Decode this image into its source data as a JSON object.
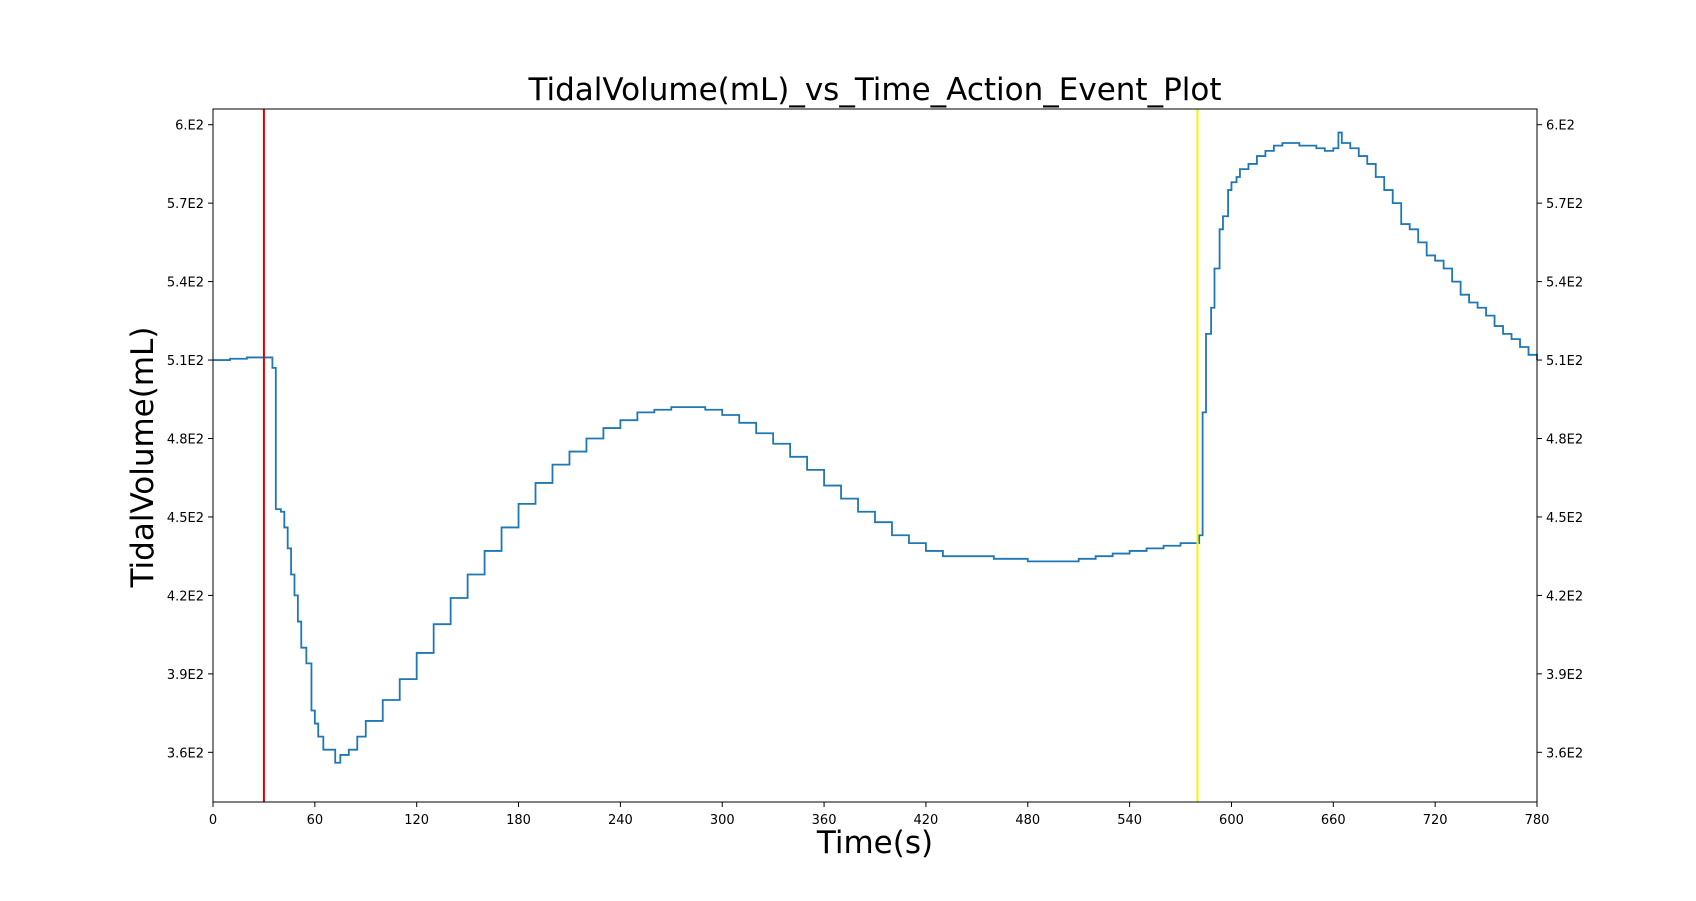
{
  "chart_data": {
    "type": "line",
    "title": "TidalVolume(mL)_vs_Time_Action_Event_Plot",
    "xlabel": "Time(s)",
    "ylabel": "TidalVolume(mL)",
    "xlim": [
      0,
      780
    ],
    "ylim": [
      341,
      606
    ],
    "x_ticks": [
      0,
      60,
      120,
      180,
      240,
      300,
      360,
      420,
      480,
      540,
      600,
      660,
      720,
      780
    ],
    "x_tick_labels": [
      "0",
      "60",
      "120",
      "180",
      "240",
      "300",
      "360",
      "420",
      "480",
      "540",
      "600",
      "660",
      "720",
      "780"
    ],
    "y_ticks": [
      360,
      390,
      420,
      450,
      480,
      510,
      540,
      570,
      600
    ],
    "y_tick_labels": [
      "3.6E2",
      "3.9E2",
      "4.2E2",
      "4.5E2",
      "4.8E2",
      "5.1E2",
      "5.4E2",
      "5.7E2",
      "6.E2"
    ],
    "y_ticks_mirrored_right": true,
    "grid": false,
    "series_color": "#1f77b4",
    "event_lines": [
      {
        "x": 30,
        "color": "#e00000"
      },
      {
        "x": 580,
        "color": "#f5f500"
      }
    ],
    "series": [
      {
        "x": [
          0,
          10,
          20,
          30,
          32,
          35,
          37,
          40,
          42,
          44,
          46,
          48,
          50,
          52,
          55,
          58,
          60,
          62,
          65,
          70,
          72,
          75,
          80,
          85,
          90,
          100,
          110,
          120,
          130,
          140,
          150,
          160,
          170,
          180,
          190,
          200,
          210,
          220,
          230,
          240,
          250,
          260,
          270,
          280,
          290,
          300,
          310,
          320,
          330,
          340,
          350,
          360,
          370,
          380,
          390,
          400,
          410,
          420,
          430,
          440,
          450,
          460,
          470,
          480,
          490,
          500,
          510,
          520,
          530,
          540,
          550,
          560,
          570,
          579,
          581,
          583,
          585,
          588,
          590,
          593,
          595,
          598,
          600,
          603,
          605,
          610,
          615,
          620,
          625,
          630,
          635,
          640,
          645,
          650,
          655,
          660,
          663,
          665,
          670,
          675,
          680,
          685,
          690,
          695,
          700,
          705,
          710,
          715,
          720,
          725,
          730,
          735,
          740,
          745,
          750,
          755,
          760,
          765,
          770,
          775,
          780
        ],
        "y": [
          510,
          510.5,
          511,
          511,
          511,
          507,
          453,
          452,
          446,
          438,
          428,
          420,
          410,
          400,
          394,
          376,
          371,
          366,
          361,
          361,
          356,
          359,
          361,
          366,
          372,
          380,
          388,
          398,
          409,
          419,
          428,
          437,
          446,
          455,
          463,
          470,
          475,
          480,
          484,
          487,
          490,
          491,
          492,
          492,
          491,
          489,
          486,
          482,
          478,
          473,
          468,
          462,
          457,
          452,
          448,
          443,
          440,
          437,
          435,
          435,
          435,
          434,
          434,
          433,
          433,
          433,
          434,
          435,
          436,
          437,
          438,
          439,
          440,
          440,
          443,
          490,
          520,
          530,
          545,
          560,
          565,
          575,
          578,
          580,
          583,
          585,
          588,
          590,
          592,
          593,
          593,
          592,
          592,
          591,
          590,
          591,
          597,
          593,
          591,
          588,
          585,
          580,
          575,
          570,
          562,
          560,
          555,
          550,
          548,
          545,
          540,
          535,
          532,
          530,
          527,
          523,
          520,
          518,
          515,
          512,
          510
        ]
      }
    ]
  }
}
